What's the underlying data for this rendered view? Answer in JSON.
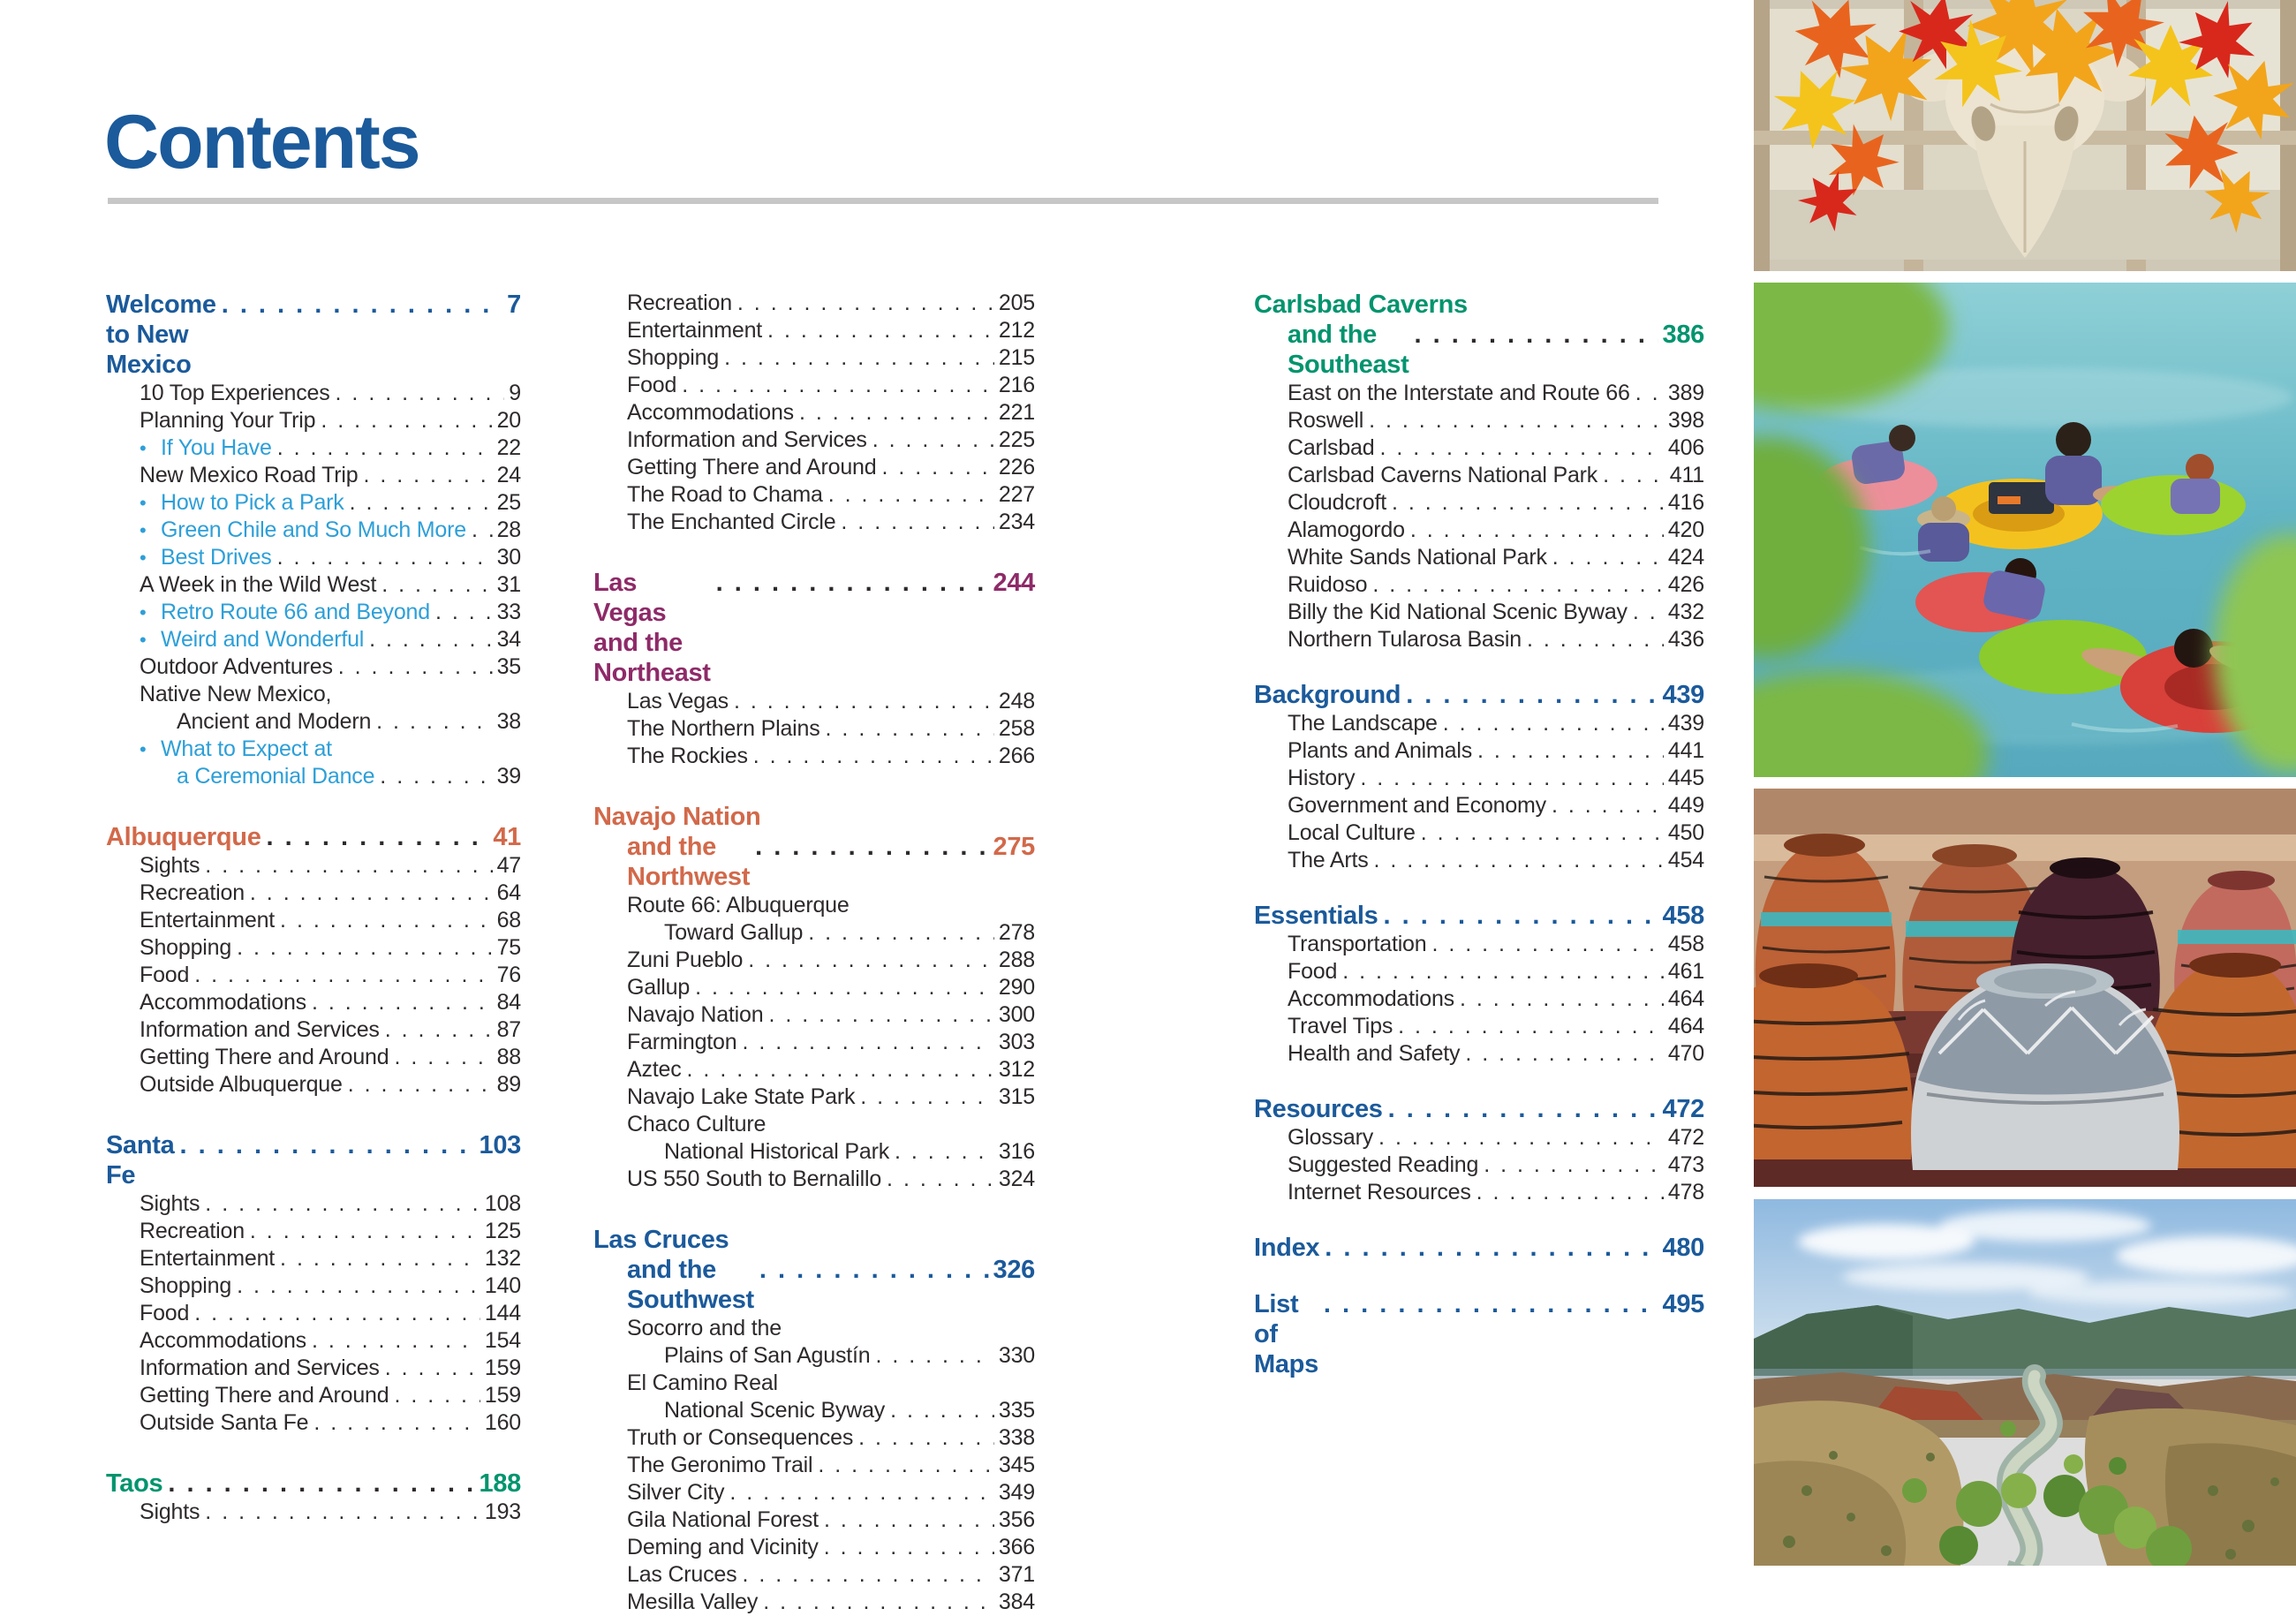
{
  "page": {
    "title": "Contents"
  },
  "accent_colors": {
    "heading_blue": "#1b5a9b",
    "heading_orange": "#d2694a",
    "heading_teal": "#00946e",
    "heading_purple": "#8e2a68",
    "bullet_light_blue": "#2d9fd8",
    "body_text": "#2e2a2c",
    "rule_gray": "#c7c7c7"
  },
  "columns": [
    {
      "sections": [
        {
          "title": "Welcome to New Mexico",
          "page": "7",
          "color": "blue",
          "entries": [
            {
              "label": "10 Top Experiences",
              "page": "9"
            },
            {
              "label": "Planning Your Trip",
              "page": "20"
            },
            {
              "label": "If You Have",
              "page": "22",
              "bullet": true
            },
            {
              "label": "New Mexico Road Trip",
              "page": "24"
            },
            {
              "label": "How to Pick a Park",
              "page": "25",
              "bullet": true
            },
            {
              "label": "Green Chile and So Much More",
              "page": "28",
              "bullet": true
            },
            {
              "label": "Best Drives",
              "page": "30",
              "bullet": true
            },
            {
              "label": "A Week in the Wild West",
              "page": "31"
            },
            {
              "label": "Retro Route 66 and Beyond",
              "page": "33",
              "bullet": true
            },
            {
              "label": "Weird and Wonderful",
              "page": "34",
              "bullet": true
            },
            {
              "label": "Outdoor Adventures",
              "page": "35"
            },
            {
              "line1": "Native New Mexico,",
              "label": "Ancient and Modern",
              "page": "38"
            },
            {
              "line1": "What to Expect at",
              "label": "a Ceremonial Dance",
              "page": "39",
              "bullet": true
            }
          ]
        },
        {
          "title": "Albuquerque",
          "page": "41",
          "color": "orange",
          "entries": [
            {
              "label": "Sights",
              "page": "47"
            },
            {
              "label": "Recreation",
              "page": "64"
            },
            {
              "label": "Entertainment",
              "page": "68"
            },
            {
              "label": "Shopping",
              "page": "75"
            },
            {
              "label": "Food",
              "page": "76"
            },
            {
              "label": "Accommodations",
              "page": "84"
            },
            {
              "label": "Information and Services",
              "page": "87"
            },
            {
              "label": "Getting There and Around",
              "page": "88"
            },
            {
              "label": "Outside Albuquerque",
              "page": "89"
            }
          ]
        },
        {
          "title": "Santa Fe",
          "page": "103",
          "color": "blue",
          "entries": [
            {
              "label": "Sights",
              "page": "108"
            },
            {
              "label": "Recreation",
              "page": "125"
            },
            {
              "label": "Entertainment",
              "page": "132"
            },
            {
              "label": "Shopping",
              "page": "140"
            },
            {
              "label": "Food",
              "page": "144"
            },
            {
              "label": "Accommodations",
              "page": "154"
            },
            {
              "label": "Information and Services",
              "page": "159"
            },
            {
              "label": "Getting There and Around",
              "page": "159"
            },
            {
              "label": "Outside Santa Fe",
              "page": "160"
            }
          ]
        },
        {
          "title": "Taos",
          "page": "188",
          "color": "teal",
          "entries": [
            {
              "label": "Sights",
              "page": "193"
            }
          ]
        }
      ]
    },
    {
      "sections": [
        {
          "entries": [
            {
              "label": "Recreation",
              "page": "205"
            },
            {
              "label": "Entertainment",
              "page": "212"
            },
            {
              "label": "Shopping",
              "page": "215"
            },
            {
              "label": "Food",
              "page": "216"
            },
            {
              "label": "Accommodations",
              "page": "221"
            },
            {
              "label": "Information and Services",
              "page": "225"
            },
            {
              "label": "Getting There and Around",
              "page": "226"
            },
            {
              "label": "The Road to Chama",
              "page": "227"
            },
            {
              "label": "The Enchanted Circle",
              "page": "234"
            }
          ]
        },
        {
          "title": "Las Vegas and the Northeast",
          "page": "244",
          "color": "purple",
          "entries": [
            {
              "label": "Las Vegas",
              "page": "248"
            },
            {
              "label": "The Northern Plains",
              "page": "258"
            },
            {
              "label": "The Rockies",
              "page": "266"
            }
          ]
        },
        {
          "title": "Navajo Nation",
          "title2": "and the Northwest",
          "page": "275",
          "color": "orange",
          "entries": [
            {
              "line1": "Route 66: Albuquerque",
              "label": "Toward Gallup",
              "page": "278"
            },
            {
              "label": "Zuni Pueblo",
              "page": "288"
            },
            {
              "label": "Gallup",
              "page": "290"
            },
            {
              "label": "Navajo Nation",
              "page": "300"
            },
            {
              "label": "Farmington",
              "page": "303"
            },
            {
              "label": "Aztec",
              "page": "312"
            },
            {
              "label": "Navajo Lake State Park",
              "page": "315"
            },
            {
              "line1": "Chaco Culture",
              "label": "National Historical Park",
              "page": "316"
            },
            {
              "label": "US 550 South to Bernalillo",
              "page": "324"
            }
          ]
        },
        {
          "title": "Las Cruces",
          "title2": "and the Southwest",
          "page": "326",
          "color": "blue",
          "entries": [
            {
              "line1": "Socorro and the",
              "label": "Plains of San Agustín",
              "page": "330"
            },
            {
              "line1": "El Camino Real",
              "label": "National Scenic Byway",
              "page": "335"
            },
            {
              "label": "Truth or Consequences",
              "page": "338"
            },
            {
              "label": "The Geronimo Trail",
              "page": "345"
            },
            {
              "label": "Silver City",
              "page": "349"
            },
            {
              "label": "Gila National Forest",
              "page": "356"
            },
            {
              "label": "Deming and Vicinity",
              "page": "366"
            },
            {
              "label": "Las Cruces",
              "page": "371"
            },
            {
              "label": "Mesilla Valley",
              "page": "384"
            }
          ]
        }
      ]
    },
    {
      "sections": [
        {
          "title": "Carlsbad Caverns",
          "title2": "and the Southeast",
          "page": "386",
          "color": "teal",
          "entries": [
            {
              "label": "East on the Interstate and Route 66",
              "page": "389"
            },
            {
              "label": "Roswell",
              "page": "398"
            },
            {
              "label": "Carlsbad",
              "page": "406"
            },
            {
              "label": "Carlsbad Caverns National Park",
              "page": "411"
            },
            {
              "label": "Cloudcroft",
              "page": "416"
            },
            {
              "label": "Alamogordo",
              "page": "420"
            },
            {
              "label": "White Sands National Park",
              "page": "424"
            },
            {
              "label": "Ruidoso",
              "page": "426"
            },
            {
              "label": "Billy the Kid National Scenic Byway",
              "page": "432"
            },
            {
              "label": "Northern Tularosa Basin",
              "page": "436"
            }
          ]
        },
        {
          "title": "Background",
          "page": "439",
          "color": "blue",
          "entries": [
            {
              "label": "The Landscape",
              "page": "439"
            },
            {
              "label": "Plants and Animals",
              "page": "441"
            },
            {
              "label": "History",
              "page": "445"
            },
            {
              "label": "Government and Economy",
              "page": "449"
            },
            {
              "label": "Local Culture",
              "page": "450"
            },
            {
              "label": "The Arts",
              "page": "454"
            }
          ]
        },
        {
          "title": "Essentials",
          "page": "458",
          "color": "blue",
          "entries": [
            {
              "label": "Transportation",
              "page": "458"
            },
            {
              "label": "Food",
              "page": "461"
            },
            {
              "label": "Accommodations",
              "page": "464"
            },
            {
              "label": "Travel Tips",
              "page": "464"
            },
            {
              "label": "Health and Safety",
              "page": "470"
            }
          ]
        },
        {
          "title": "Resources",
          "page": "472",
          "color": "blue",
          "entries": [
            {
              "label": "Glossary",
              "page": "472"
            },
            {
              "label": "Suggested Reading",
              "page": "473"
            },
            {
              "label": "Internet Resources",
              "page": "478"
            }
          ]
        },
        {
          "title": "Index",
          "page": "480",
          "color": "blue",
          "entries": []
        },
        {
          "title": "List of Maps",
          "page": "495",
          "color": "blue",
          "entries": []
        }
      ]
    }
  ],
  "photos": [
    {
      "name": "cow-skull-autumn-leaves",
      "alt": "Steer skull decorated with orange and yellow autumn leaves hung on a weathered window frame"
    },
    {
      "name": "river-tubing",
      "alt": "People floating in colorful inner tubes on a blue-green river"
    },
    {
      "name": "navajo-pottery",
      "alt": "Painted pottery jars with orange, teal and black geometric designs on a table"
    },
    {
      "name": "rio-chama-canyon",
      "alt": "A river winding through a green high-desert canyon under a blue sky"
    }
  ]
}
